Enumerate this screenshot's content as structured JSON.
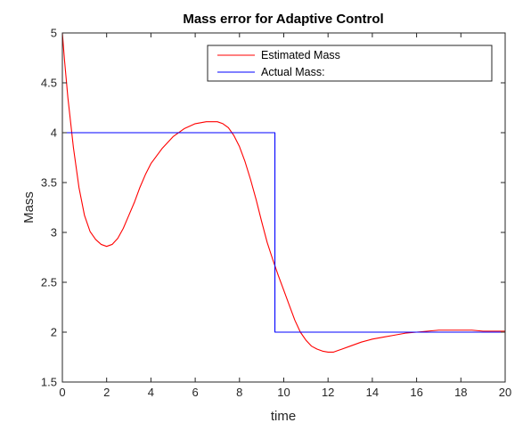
{
  "chart_data": {
    "type": "line",
    "title": "Mass error for Adaptive Control",
    "xlabel": "time",
    "ylabel": "Mass",
    "xlim": [
      0,
      20
    ],
    "ylim": [
      1.5,
      5
    ],
    "xticks": [
      0,
      2,
      4,
      6,
      8,
      10,
      12,
      14,
      16,
      18,
      20
    ],
    "yticks": [
      1.5,
      2,
      2.5,
      3,
      3.5,
      4,
      4.5,
      5
    ],
    "grid": false,
    "legend_position": "top-right",
    "series": [
      {
        "name": "Estimated Mass",
        "color": "#ff0000",
        "x": [
          0,
          0.1,
          0.25,
          0.5,
          0.75,
          1.0,
          1.25,
          1.5,
          1.75,
          2.0,
          2.25,
          2.5,
          2.75,
          3.0,
          3.25,
          3.5,
          3.75,
          4.0,
          4.5,
          5.0,
          5.5,
          6.0,
          6.5,
          7.0,
          7.25,
          7.5,
          7.75,
          8.0,
          8.25,
          8.5,
          8.75,
          9.0,
          9.25,
          9.5,
          9.75,
          10.0,
          10.25,
          10.5,
          10.75,
          11.0,
          11.25,
          11.5,
          11.75,
          12.0,
          12.25,
          12.5,
          13.0,
          13.5,
          14.0,
          14.5,
          15.0,
          15.5,
          16.0,
          16.5,
          17.0,
          17.5,
          18.0,
          18.5,
          19.0,
          19.5,
          20.0
        ],
        "y": [
          5.0,
          4.72,
          4.35,
          3.85,
          3.45,
          3.17,
          3.01,
          2.93,
          2.88,
          2.86,
          2.88,
          2.94,
          3.04,
          3.17,
          3.3,
          3.45,
          3.58,
          3.69,
          3.84,
          3.96,
          4.04,
          4.09,
          4.11,
          4.11,
          4.09,
          4.05,
          3.97,
          3.86,
          3.71,
          3.53,
          3.33,
          3.11,
          2.9,
          2.73,
          2.57,
          2.42,
          2.27,
          2.12,
          2.0,
          1.92,
          1.86,
          1.83,
          1.81,
          1.8,
          1.8,
          1.82,
          1.86,
          1.9,
          1.93,
          1.95,
          1.97,
          1.99,
          2.0,
          2.01,
          2.02,
          2.02,
          2.02,
          2.02,
          2.01,
          2.01,
          2.01
        ]
      },
      {
        "name": "Actual Mass:",
        "color": "#0000ff",
        "x": [
          0,
          9.6,
          9.6,
          20
        ],
        "y": [
          4,
          4,
          2,
          2
        ]
      }
    ]
  }
}
